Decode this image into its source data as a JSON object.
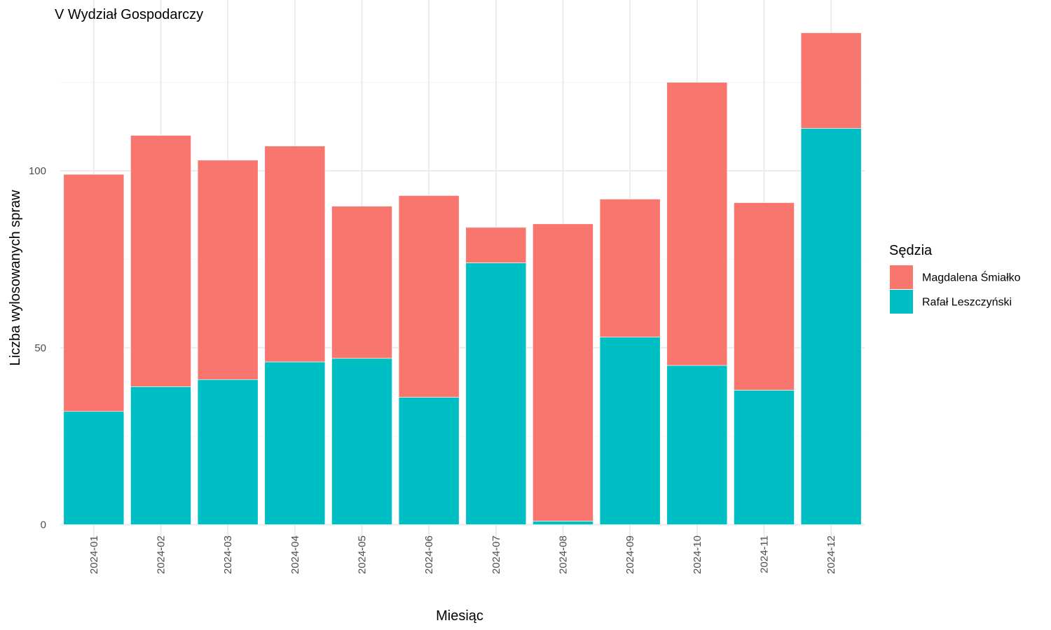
{
  "chart_data": {
    "type": "bar",
    "stacked": true,
    "title": "V Wydział Gospodarczy",
    "xlabel": "Miesiąc",
    "ylabel": "Liczba wylosowanych spraw",
    "categories": [
      "2024-01",
      "2024-02",
      "2024-03",
      "2024-04",
      "2024-05",
      "2024-06",
      "2024-07",
      "2024-08",
      "2024-09",
      "2024-10",
      "2024-11",
      "2024-12"
    ],
    "series": [
      {
        "name": "Rafał Leszczyński",
        "color": "#00BFC4",
        "values": [
          32,
          39,
          41,
          46,
          47,
          36,
          74,
          1,
          53,
          45,
          38,
          112
        ]
      },
      {
        "name": "Magdalena Śmiałko",
        "color": "#F8766D",
        "values": [
          67,
          71,
          62,
          61,
          43,
          57,
          10,
          84,
          39,
          80,
          53,
          27
        ]
      }
    ],
    "yticks": [
      0,
      50,
      100
    ],
    "ylim": [
      0,
      146
    ],
    "grid": true,
    "legend": {
      "title": "Sędzia",
      "position": "right",
      "entries": [
        "Magdalena Śmiałko",
        "Rafał Leszczyński"
      ]
    }
  }
}
